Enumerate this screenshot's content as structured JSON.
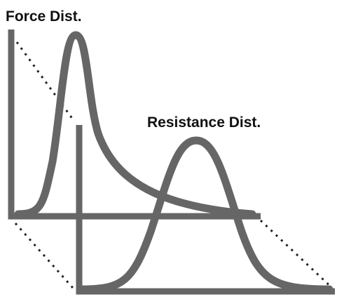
{
  "labels": {
    "force": "Force Dist.",
    "resistance": "Resistance Dist."
  }
}
